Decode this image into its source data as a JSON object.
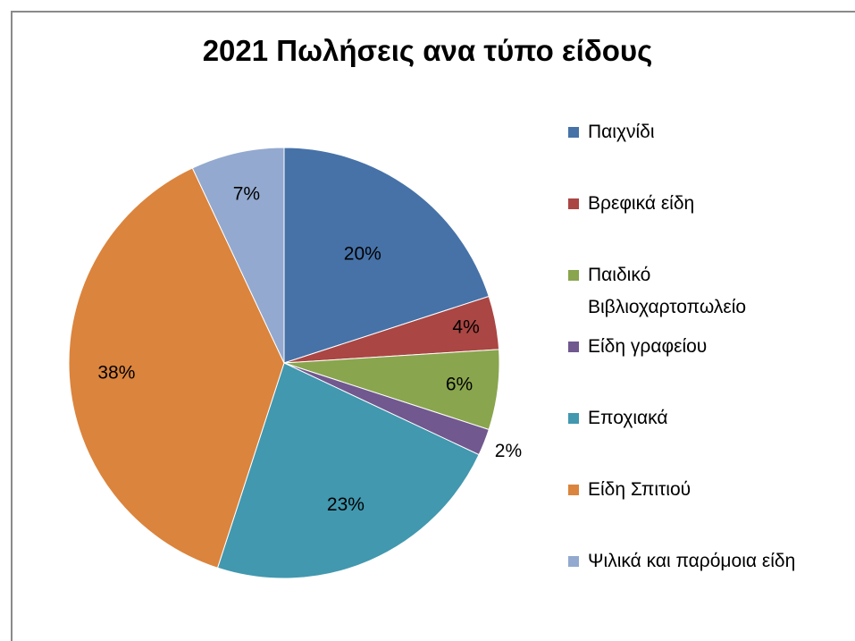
{
  "chart_data": {
    "type": "pie",
    "title": "2021 Πωλήσεις ανα τύπο είδους",
    "categories": [
      "Παιχνίδι",
      "Βρεφικά είδη",
      "Παιδικό\nΒιβλιοχαρτοπωλείο",
      "Είδη γραφείου",
      "Εποχιακά",
      "Είδη Σπιτιού",
      "Ψιλικά και παρόμοια είδη"
    ],
    "values": [
      20,
      4,
      6,
      2,
      23,
      38,
      7
    ],
    "data_labels": [
      "20%",
      "4%",
      "6%",
      "2%",
      "23%",
      "38%",
      "7%"
    ],
    "colors": [
      "#4672A8",
      "#AA4643",
      "#89A54E",
      "#71588F",
      "#4198AF",
      "#DB843D",
      "#93A9CF"
    ],
    "legend_position": "right"
  }
}
